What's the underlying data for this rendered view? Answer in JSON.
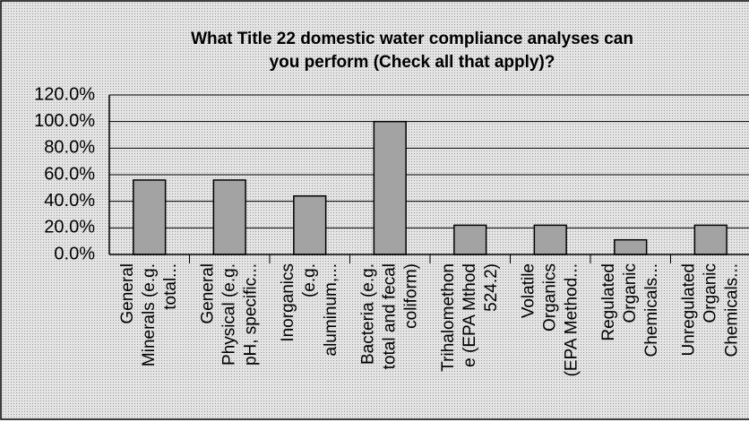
{
  "chart_data": {
    "type": "bar",
    "title": [
      "What Title 22 domestic water compliance analyses can",
      "you perform (Check all that apply)?"
    ],
    "categories": [
      [
        "General",
        "Minerals (e.g.",
        "total..."
      ],
      [
        "General",
        "Physical (e.g.",
        "pH, specific..."
      ],
      [
        "Inorganics",
        "(e.g.",
        "aluminum,..."
      ],
      [
        "Bacteria (e.g.",
        "total and fecal",
        "coliform)"
      ],
      [
        "Trihalomethon",
        "e (EPA Mthod",
        "524.2)"
      ],
      [
        "Volatile",
        "Organics",
        "(EPA Method..."
      ],
      [
        "Regulated",
        "Organic",
        "Chemicals..."
      ],
      [
        "Unregulated",
        "Organic",
        "Chemicals..."
      ]
    ],
    "values": [
      56,
      56,
      44,
      100,
      22,
      22,
      11,
      22
    ],
    "color": "#a3a3a3",
    "ylim": [
      0,
      120
    ],
    "yticks": [
      {
        "value": 0,
        "label": "0.0%"
      },
      {
        "value": 20,
        "label": "20.0%"
      },
      {
        "value": 40,
        "label": "40.0%"
      },
      {
        "value": 60,
        "label": "60.0%"
      },
      {
        "value": 80,
        "label": "80.0%"
      },
      {
        "value": 100,
        "label": "100.0%"
      },
      {
        "value": 120,
        "label": "120.0%"
      }
    ],
    "grid": true
  }
}
